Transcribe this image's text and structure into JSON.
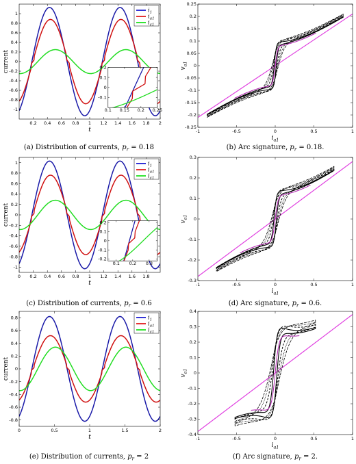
{
  "captions": [
    "(a) Distribution of currents, p_r = 0.18",
    "(b) Arc signature, p_r = 0.18.",
    "(c) Distribution of currents, p_r = 0.6",
    "(d) Arc signature, p_r = 0.6.",
    "(e) Distribution of currents, p_r = 2",
    "(f) Arc signature, p_r = 2."
  ],
  "chart_data": [
    {
      "id": "a",
      "type": "line",
      "caption": {
        "pre": "(a) Distribution of currents, ",
        "sym": "p",
        "sub": "r",
        "post": " = 0.18"
      },
      "xlabel": "t",
      "ylabel": "current",
      "xlim": [
        0,
        2
      ],
      "ylim": [
        -1.2,
        1.2
      ],
      "xticks": [
        0.2,
        0.4,
        0.6,
        0.8,
        1,
        1.2,
        1.4,
        1.6,
        1.8,
        2
      ],
      "yticks": [
        -1,
        -0.8,
        -0.6,
        -0.4,
        -0.2,
        0,
        0.2,
        0.4,
        0.6,
        0.8,
        1
      ],
      "legend": {
        "position": "top-right",
        "entries": [
          {
            "base": "i",
            "sub": "1",
            "color": "#0000cc"
          },
          {
            "base": "i",
            "sub": "a1",
            "color": "#dd0000"
          },
          {
            "base": "i",
            "sub": "c1",
            "color": "#00dd00"
          }
        ]
      },
      "series": [
        {
          "name": "i1",
          "amplitude": 1.13,
          "phase_deg": 0,
          "color": "#1a1aa8"
        },
        {
          "name": "ia1",
          "amplitude": 0.88,
          "phase_deg": -5,
          "color": "#d01010"
        },
        {
          "name": "ic1",
          "amplitude": 0.25,
          "phase_deg": -30,
          "color": "#22dd22"
        }
      ],
      "inset": {
        "position": "lower-right",
        "xlim": [
          0.1,
          0.25
        ],
        "ylim": [
          -0.2,
          0.2
        ],
        "xticks": [
          0.1,
          0.15,
          0.2,
          0.25
        ],
        "yticks": [
          -0.1,
          0,
          0.1,
          0.2
        ]
      }
    },
    {
      "id": "b",
      "type": "line",
      "caption": {
        "pre": "(b) Arc signature, ",
        "sym": "p",
        "sub": "r",
        "post": " = 0.18."
      },
      "xlabel": "i_a1",
      "ylabel": "v_a1",
      "xlim": [
        -1,
        1
      ],
      "ylim": [
        -0.25,
        0.25
      ],
      "xticks": [
        -1,
        -0.5,
        0,
        0.5,
        1
      ],
      "yticks": [
        -0.25,
        -0.2,
        -0.15,
        -0.1,
        -0.05,
        0,
        0.05,
        0.1,
        0.15,
        0.2,
        0.25
      ],
      "xmax_data": 0.88,
      "line_slope": 0.21,
      "jump": 0.09,
      "loop_width": 0.08
    },
    {
      "id": "c",
      "type": "line",
      "caption": {
        "pre": "(c) Distribution of currents, ",
        "sym": "p",
        "sub": "r",
        "post": " = 0.6"
      },
      "xlabel": "t",
      "ylabel": "current",
      "xlim": [
        0,
        2
      ],
      "ylim": [
        -1.1,
        1.1
      ],
      "xticks": [
        0,
        0.2,
        0.4,
        0.6,
        0.8,
        1,
        1.2,
        1.4,
        1.6,
        1.8
      ],
      "yticks": [
        -1,
        -0.8,
        -0.6,
        -0.4,
        -0.2,
        0,
        0.2,
        0.4,
        0.6,
        0.8,
        1
      ],
      "legend": {
        "position": "top-right",
        "entries": [
          {
            "base": "i",
            "sub": "1",
            "color": "#0000cc"
          },
          {
            "base": "i",
            "sub": "a1",
            "color": "#dd0000"
          },
          {
            "base": "i",
            "sub": "c1",
            "color": "#00dd00"
          }
        ]
      },
      "series": [
        {
          "name": "i1",
          "amplitude": 1.03,
          "phase_deg": 0,
          "color": "#1a1aa8"
        },
        {
          "name": "ia1",
          "amplitude": 0.76,
          "phase_deg": -5,
          "color": "#d01010"
        },
        {
          "name": "ic1",
          "amplitude": 0.28,
          "phase_deg": -30,
          "color": "#22dd22"
        }
      ],
      "inset": {
        "position": "lower-right",
        "xlim": [
          0.05,
          0.35
        ],
        "ylim": [
          -0.22,
          0.22
        ],
        "xticks": [
          0.1,
          0.2,
          0.3
        ],
        "yticks": [
          -0.2,
          -0.1,
          0,
          0.1,
          0.2
        ]
      }
    },
    {
      "id": "d",
      "type": "line",
      "caption": {
        "pre": "(d) Arc signature, ",
        "sym": "p",
        "sub": "r",
        "post": " = 0.6."
      },
      "xlabel": "i_a1",
      "ylabel": "v_a1",
      "xlim": [
        -1,
        1
      ],
      "ylim": [
        -0.3,
        0.3
      ],
      "xticks": [
        -1,
        -0.5,
        0,
        0.5,
        1
      ],
      "yticks": [
        -0.3,
        -0.2,
        -0.1,
        0,
        0.1,
        0.2,
        0.3
      ],
      "xmax_data": 0.76,
      "line_slope": 0.28,
      "jump": 0.13,
      "loop_width": 0.1
    },
    {
      "id": "e",
      "type": "line",
      "caption": {
        "pre": "(e) Distribution of currents, ",
        "sym": "p",
        "sub": "r",
        "post": " = 2"
      },
      "xlabel": "t",
      "ylabel": "current",
      "xlim": [
        0,
        2
      ],
      "ylim": [
        -0.9,
        0.9
      ],
      "xticks": [
        0,
        0.5,
        1,
        1.5,
        2
      ],
      "yticks": [
        -0.8,
        -0.6,
        -0.4,
        -0.2,
        0,
        0.2,
        0.4,
        0.6,
        0.8
      ],
      "legend": {
        "position": "top-right",
        "entries": [
          {
            "base": "i",
            "sub": "1",
            "color": "#0000cc"
          },
          {
            "base": "i",
            "sub": "a1",
            "color": "#dd0000"
          },
          {
            "base": "i",
            "sub": "c1",
            "color": "#00dd00"
          }
        ]
      },
      "series": [
        {
          "name": "i1",
          "amplitude": 0.82,
          "phase_deg": 0,
          "color": "#1a1aa8"
        },
        {
          "name": "ia1",
          "amplitude": 0.52,
          "phase_deg": -5,
          "color": "#d01010"
        },
        {
          "name": "ic1",
          "amplitude": 0.34,
          "phase_deg": -30,
          "color": "#22dd22"
        }
      ]
    },
    {
      "id": "f",
      "type": "line",
      "caption": {
        "pre": "(f) Arc signature, ",
        "sym": "p",
        "sub": "r",
        "post": " = 2."
      },
      "xlabel": "i_a1",
      "ylabel": "v_a1",
      "xlim": [
        -1,
        1
      ],
      "ylim": [
        -0.4,
        0.4
      ],
      "xticks": [
        -1,
        -0.5,
        0,
        0.5,
        1
      ],
      "yticks": [
        -0.4,
        -0.3,
        -0.2,
        -0.1,
        0,
        0.1,
        0.2,
        0.3,
        0.4
      ],
      "xmax_data": 0.52,
      "line_slope": 0.38,
      "jump": 0.3,
      "loop_width": 0.14
    }
  ],
  "colors": {
    "i1": "#1a1aa8",
    "ia1": "#d01010",
    "ic1": "#22dd22",
    "fit": "#e040e0",
    "axes": "#000000"
  }
}
